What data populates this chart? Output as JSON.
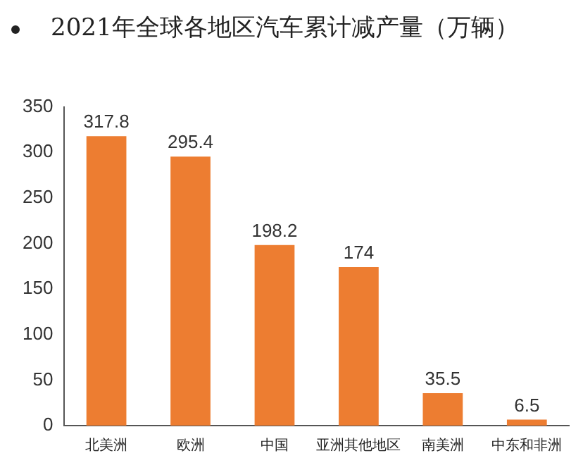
{
  "chart_data": {
    "type": "bar",
    "title": "2021年全球各地区汽车累计减产量（万辆）",
    "categories": [
      "北美洲",
      "欧洲",
      "中国",
      "亚洲其他地区",
      "南美洲",
      "中东和非洲"
    ],
    "values": [
      317.8,
      295.4,
      198.2,
      174,
      35.5,
      6.5
    ],
    "color": "#ed7d31",
    "ylim": [
      0,
      350
    ],
    "yticks": [
      0,
      50,
      100,
      150,
      200,
      250,
      300,
      350
    ],
    "grid": false,
    "data_labels": true,
    "legend": false
  }
}
